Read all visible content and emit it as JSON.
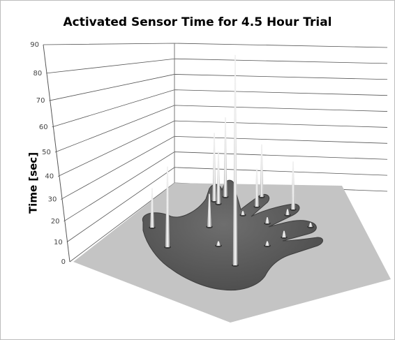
{
  "chart_data": {
    "type": "spike3d",
    "title": "Activated Sensor Time for 4.5 Hour Trial",
    "y_label": "Time [sec]",
    "ylim": [
      0,
      90
    ],
    "yticks": [
      0,
      10,
      20,
      30,
      40,
      50,
      60,
      70,
      80,
      90
    ],
    "grid": true,
    "color": "#e8e8e8",
    "values": [
      19,
      36,
      16,
      37,
      28,
      44,
      88,
      2,
      20,
      29,
      25,
      3,
      3,
      2,
      2,
      2,
      3
    ]
  }
}
